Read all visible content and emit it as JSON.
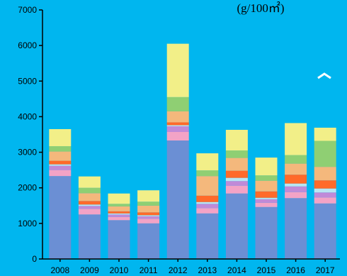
{
  "chart_data": {
    "type": "bar",
    "stacked": true,
    "unit_label": "(g/100㎡)",
    "categories": [
      "2008",
      "2009",
      "2010",
      "2011",
      "2012",
      "2013",
      "2014",
      "2015",
      "2016",
      "2017"
    ],
    "ylim": [
      0,
      7000
    ],
    "yticks": [
      0,
      1000,
      2000,
      3000,
      4000,
      5000,
      6000,
      7000
    ],
    "grid": false,
    "legend": "none",
    "series": [
      {
        "color": "#6b8fd4",
        "values": [
          2330,
          1250,
          1090,
          1000,
          3330,
          1280,
          1840,
          1460,
          1710,
          1560
        ]
      },
      {
        "color": "#f3a3c6",
        "values": [
          170,
          160,
          90,
          130,
          240,
          150,
          220,
          120,
          170,
          170
        ]
      },
      {
        "color": "#c08ad8",
        "values": [
          120,
          80,
          70,
          70,
          160,
          120,
          130,
          100,
          160,
          140
        ]
      },
      {
        "color": "#b9e6f2",
        "values": [
          40,
          40,
          30,
          30,
          30,
          50,
          90,
          40,
          80,
          110
        ]
      },
      {
        "color": "#ff6a2a",
        "values": [
          100,
          100,
          60,
          80,
          80,
          180,
          200,
          180,
          250,
          230
        ]
      },
      {
        "color": "#f4b87c",
        "values": [
          260,
          220,
          140,
          190,
          310,
          550,
          360,
          300,
          310,
          380
        ]
      },
      {
        "color": "#8fcf73",
        "values": [
          150,
          150,
          70,
          110,
          400,
          160,
          210,
          150,
          240,
          730
        ]
      },
      {
        "color": "#f2ef88",
        "values": [
          480,
          320,
          290,
          320,
          1500,
          480,
          580,
          500,
          900,
          370
        ]
      }
    ]
  }
}
